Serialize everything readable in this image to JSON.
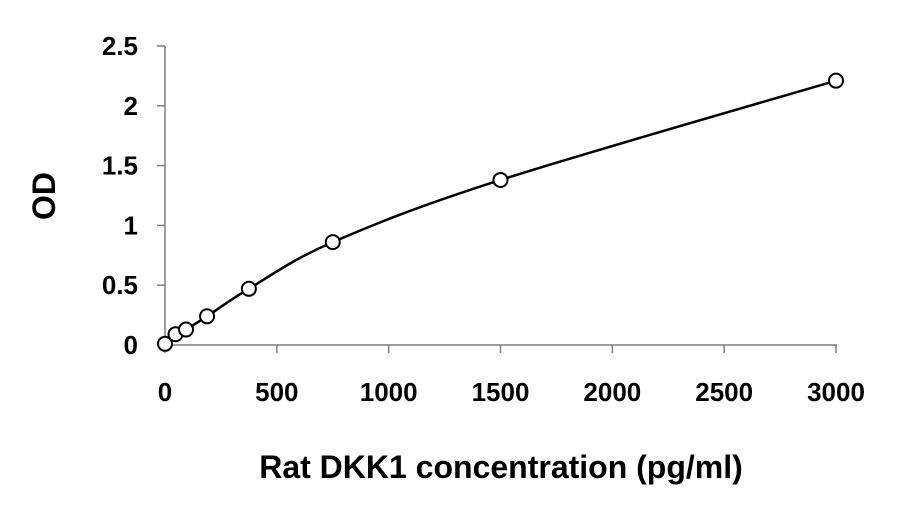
{
  "chart_data": {
    "type": "scatter",
    "title": "",
    "xlabel": "Rat DKK1 concentration (pg/ml)",
    "ylabel": "OD",
    "xlim": [
      0,
      3000
    ],
    "ylim": [
      0,
      2.5
    ],
    "x_ticks": [
      0,
      500,
      1000,
      1500,
      2000,
      2500,
      3000
    ],
    "y_ticks": [
      0,
      0.5,
      1,
      1.5,
      2,
      2.5
    ],
    "x_tick_labels": [
      "0",
      "500",
      "1000",
      "1500",
      "2000",
      "2500",
      "3000"
    ],
    "y_tick_labels": [
      "0",
      "0.5",
      "1",
      "1.5",
      "2",
      "2.5"
    ],
    "grid": false,
    "legend": "none",
    "series": [
      {
        "x": [
          0,
          47,
          94,
          188,
          375,
          750,
          1500,
          3000
        ],
        "y": [
          0.01,
          0.09,
          0.13,
          0.24,
          0.47,
          0.86,
          1.38,
          2.21
        ],
        "marker": "open-circle",
        "line": "smooth",
        "color": "#000000"
      }
    ]
  }
}
